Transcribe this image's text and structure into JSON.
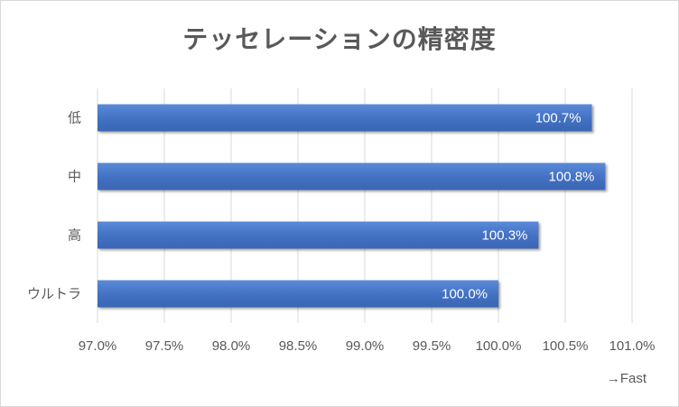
{
  "chart_data": {
    "type": "bar",
    "orientation": "horizontal",
    "title": "テッセレーションの精密度",
    "categories": [
      "低",
      "中",
      "高",
      "ウルトラ"
    ],
    "values": [
      100.7,
      100.8,
      100.3,
      100.0
    ],
    "data_labels": [
      "100.7%",
      "100.8%",
      "100.3%",
      "100.0%"
    ],
    "xlim": [
      97.0,
      101.0
    ],
    "x_ticks": [
      "97.0%",
      "97.5%",
      "98.0%",
      "98.5%",
      "99.0%",
      "99.5%",
      "100.0%",
      "100.5%",
      "101.0%"
    ],
    "grid": true,
    "annotation": "→Fast",
    "bar_color": "#4472c4"
  }
}
